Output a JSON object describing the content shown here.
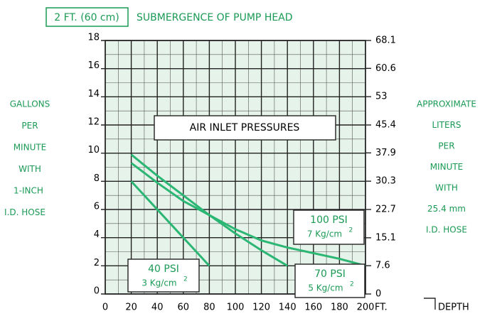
{
  "chart_data": {
    "type": "line",
    "title_box": "2 FT. (60 cm)",
    "title": "SUBMERGENCE OF PUMP HEAD",
    "y_label_lines": [
      "GALLONS",
      "PER",
      "MINUTE",
      "WITH",
      "1-INCH",
      "I.D. HOSE"
    ],
    "y2_label_lines": [
      "APPROXIMATE",
      "LITERS",
      "PER",
      "MINUTE",
      "WITH",
      "25.4 mm",
      "I.D. HOSE"
    ],
    "x_unit": "FT.",
    "x_label": "DEPTH",
    "legend_title": "AIR INLET PRESSURES",
    "xlim": [
      0,
      200
    ],
    "xticks": [
      0,
      20,
      40,
      60,
      80,
      100,
      120,
      140,
      160,
      180,
      200
    ],
    "ylim": [
      0,
      18
    ],
    "yticks": [
      0,
      2,
      4,
      6,
      8,
      10,
      12,
      14,
      16,
      18
    ],
    "y2lim": [
      0,
      68.1
    ],
    "y2ticks": [
      0,
      7.6,
      15.1,
      22.7,
      30.3,
      37.9,
      45.4,
      53,
      60.6,
      68.1
    ],
    "grid": true,
    "color": "#2bb673",
    "series": [
      {
        "name": "40 PSI",
        "metric": "3 Kg/cm",
        "exponent": "2",
        "x": [
          20,
          80
        ],
        "values": [
          8,
          2
        ]
      },
      {
        "name": "70 PSI",
        "metric": "5 Kg/cm",
        "exponent": "2",
        "x": [
          20,
          40,
          60,
          80,
          100,
          120,
          140
        ],
        "values": [
          9.9,
          8.4,
          7.0,
          5.6,
          4.3,
          3.1,
          2
        ]
      },
      {
        "name": "100 PSI",
        "metric": "7 Kg/cm",
        "exponent": "2",
        "x": [
          20,
          40,
          60,
          80,
          100,
          120,
          140,
          160,
          180,
          200
        ],
        "values": [
          9.3,
          7.9,
          6.6,
          5.6,
          4.6,
          3.8,
          3.3,
          2.9,
          2.5,
          2
        ]
      }
    ]
  }
}
